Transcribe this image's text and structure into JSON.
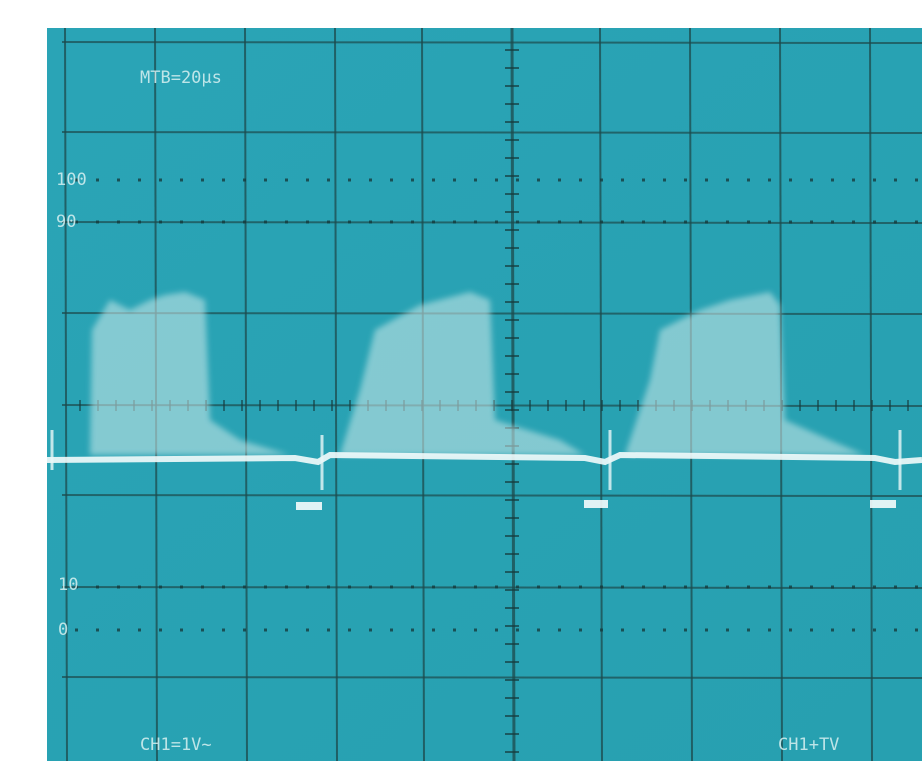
{
  "screen": {
    "timebase": "MTB=20µs",
    "markers": [
      "100",
      "90",
      "10",
      "0"
    ],
    "channel": "CH1=1V~",
    "trigger": "CH1+TV"
  }
}
